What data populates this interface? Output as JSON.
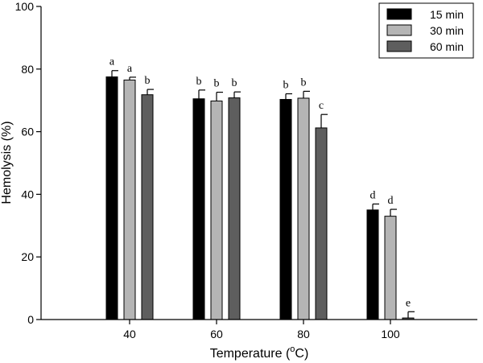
{
  "chart_data": {
    "type": "bar",
    "categories": [
      "40",
      "60",
      "80",
      "100"
    ],
    "series": [
      {
        "name": "15 min",
        "color": "#000000",
        "values": [
          77.5,
          70.5,
          70.3,
          35.0
        ],
        "errors": [
          2.0,
          2.8,
          1.8,
          1.9
        ],
        "labels": [
          "a",
          "b",
          "b",
          "d"
        ]
      },
      {
        "name": "30 min",
        "color": "#b5b5b5",
        "values": [
          76.5,
          69.8,
          70.7,
          33.0
        ],
        "errors": [
          0.9,
          2.8,
          2.2,
          2.2
        ],
        "labels": [
          "a",
          "b",
          "b",
          "d"
        ]
      },
      {
        "name": "60 min",
        "color": "#5e5e5e",
        "values": [
          71.8,
          70.8,
          61.2,
          0.5
        ],
        "errors": [
          1.7,
          1.9,
          4.3,
          2.0
        ],
        "labels": [
          "b",
          "b",
          "c",
          "e"
        ]
      }
    ],
    "xlabel": "Temperature (",
    "xlabel_sup": "o",
    "xlabel_end": "C)",
    "ylabel": "Hemolysis (%)",
    "ylim": [
      0,
      100
    ],
    "yticks": [
      "0",
      "20",
      "40",
      "60",
      "80",
      "100"
    ],
    "legend_position": "top-right",
    "grid": false
  }
}
